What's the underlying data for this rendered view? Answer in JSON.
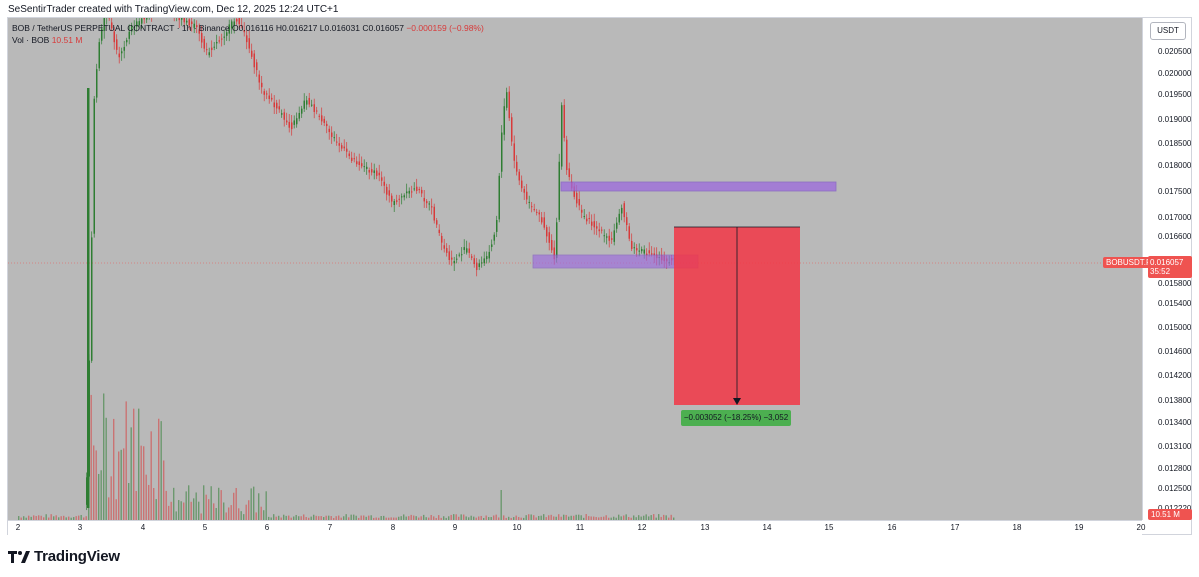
{
  "header": {
    "created_by": "SeSentirTrader created with TradingView.com, Dec 12, 2025 12:24 UTC+1"
  },
  "legend": {
    "symbol": "BOB / TetherUS PERPETUAL CONTRACT · 1h · Binance",
    "o_label": "O",
    "o_value": "0.016116",
    "h_label": "H",
    "h_value": "0.016217",
    "l_label": "L",
    "l_value": "0.016031",
    "c_label": "C",
    "c_value": "0.016057",
    "change": "−0.000159 (−0.98%)",
    "volume_label": "Vol · BOB",
    "volume_value": "10.51 M"
  },
  "currency": "USDT",
  "price_axis": {
    "ticks": [
      "0.020500",
      "0.020000",
      "0.019500",
      "0.019000",
      "0.018500",
      "0.018000",
      "0.017500",
      "0.017000",
      "0.016600",
      "0.016200",
      "0.015800",
      "0.015400",
      "0.015000",
      "0.014600",
      "0.014200",
      "0.013800",
      "0.013400",
      "0.013100",
      "0.012800",
      "0.012500",
      "0.012220"
    ]
  },
  "time_axis": {
    "ticks": [
      "2",
      "3",
      "4",
      "5",
      "6",
      "7",
      "8",
      "9",
      "10",
      "11",
      "12",
      "13",
      "14",
      "15",
      "16",
      "17",
      "18",
      "19",
      "20"
    ]
  },
  "symbol_badge": "BOBUSDT.P",
  "last_price": {
    "value": "0.016057",
    "countdown": "35:52"
  },
  "volume_badge": "10.51 M",
  "measure": {
    "label": "−0.003052 (−18.25%) −3,052"
  },
  "brand": {
    "name": "TradingView"
  },
  "colors": {
    "up": "#2e7d32",
    "down": "#d83a3a",
    "zone": "#9c6ade",
    "measure_box": "#f23645",
    "measure_label": "#4caf50",
    "background": "#b9b9b9"
  }
}
